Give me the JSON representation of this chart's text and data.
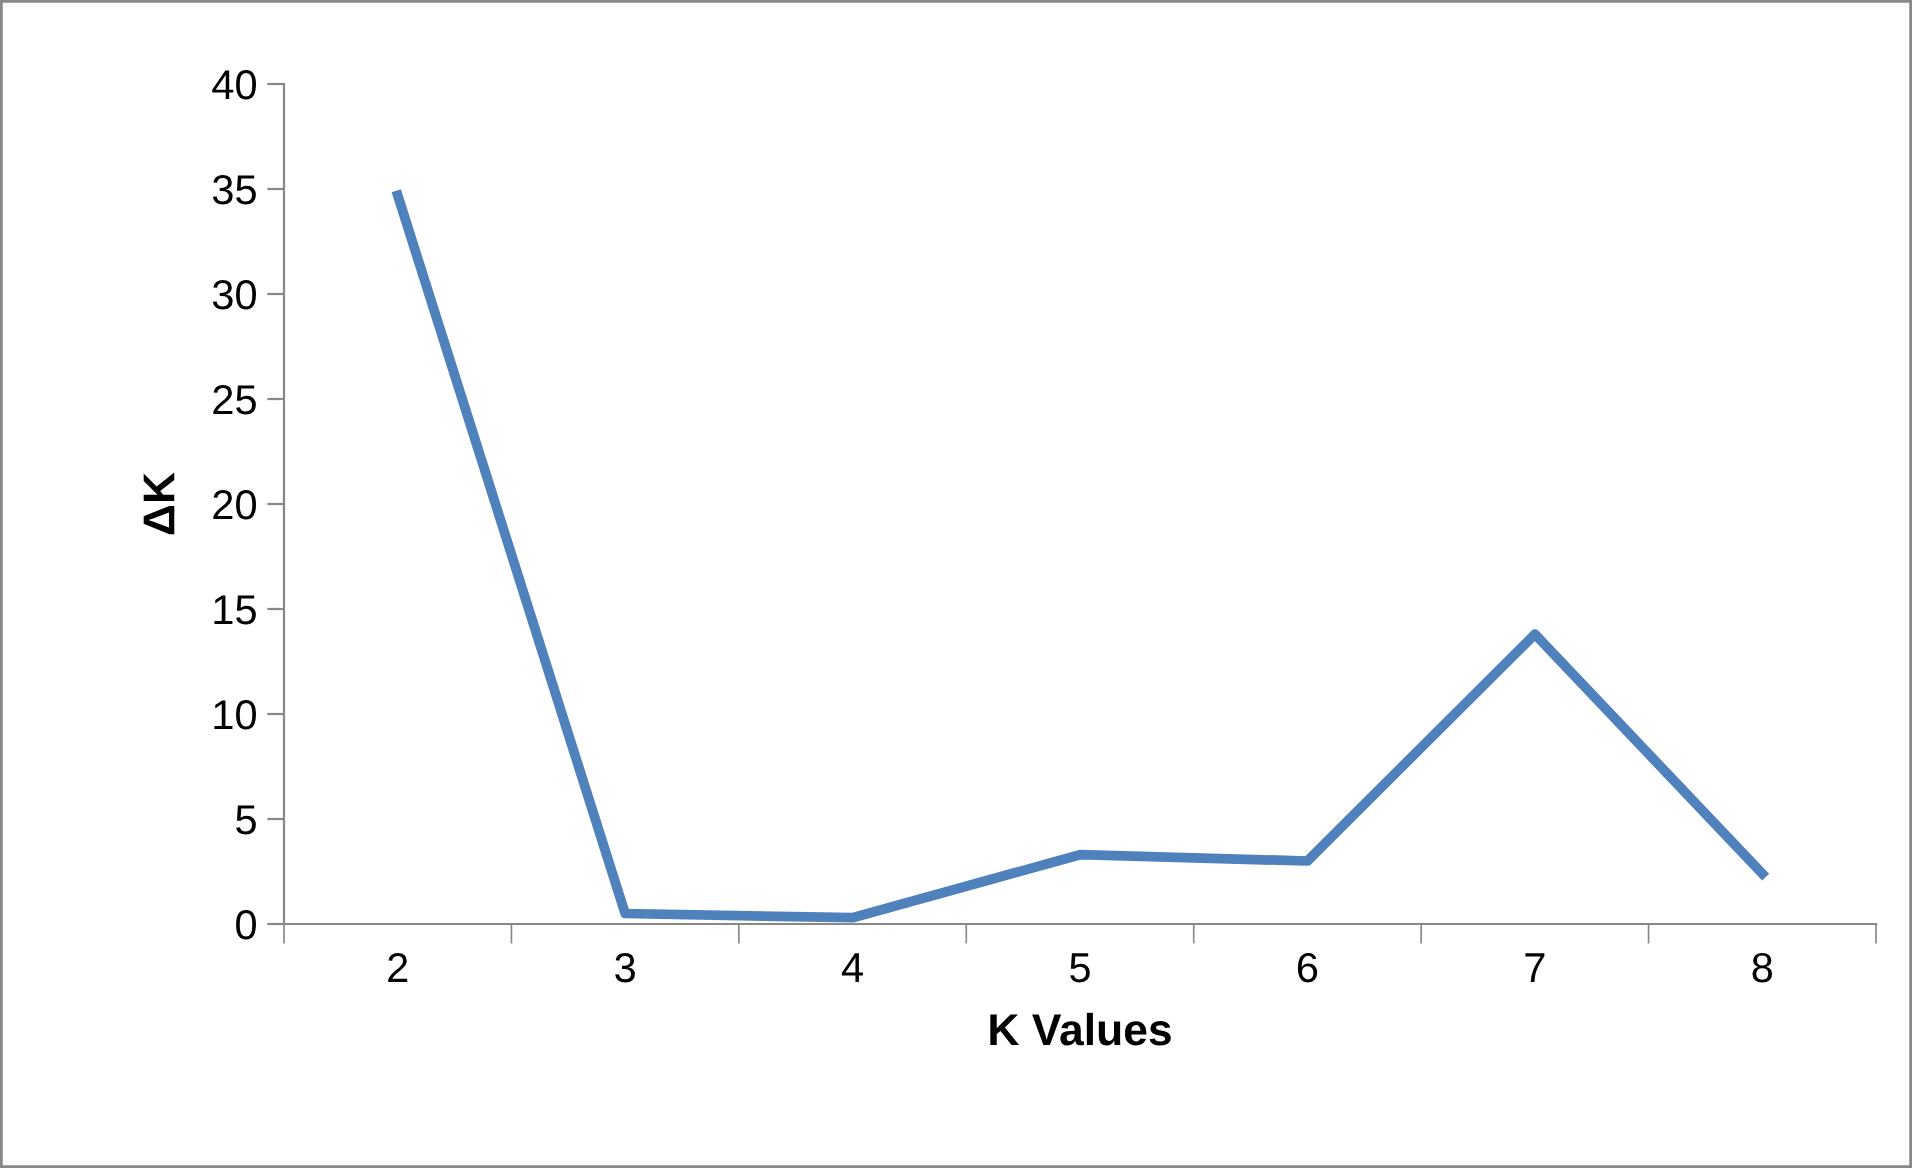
{
  "chart_data": {
    "type": "line",
    "xlabel": "K Values",
    "ylabel": "ΔK",
    "categories": [
      "2",
      "3",
      "4",
      "5",
      "6",
      "7",
      "8"
    ],
    "series": [
      {
        "color": "#4f81bd",
        "values": [
          34.7,
          0.5,
          0.3,
          3.3,
          3.0,
          13.8,
          2.4
        ]
      }
    ],
    "ylim": [
      0,
      40
    ],
    "yticks": [
      0,
      5,
      10,
      15,
      20,
      25,
      30,
      35,
      40
    ],
    "grid": false,
    "legend": false,
    "marker": "none",
    "line_style": "solid"
  }
}
